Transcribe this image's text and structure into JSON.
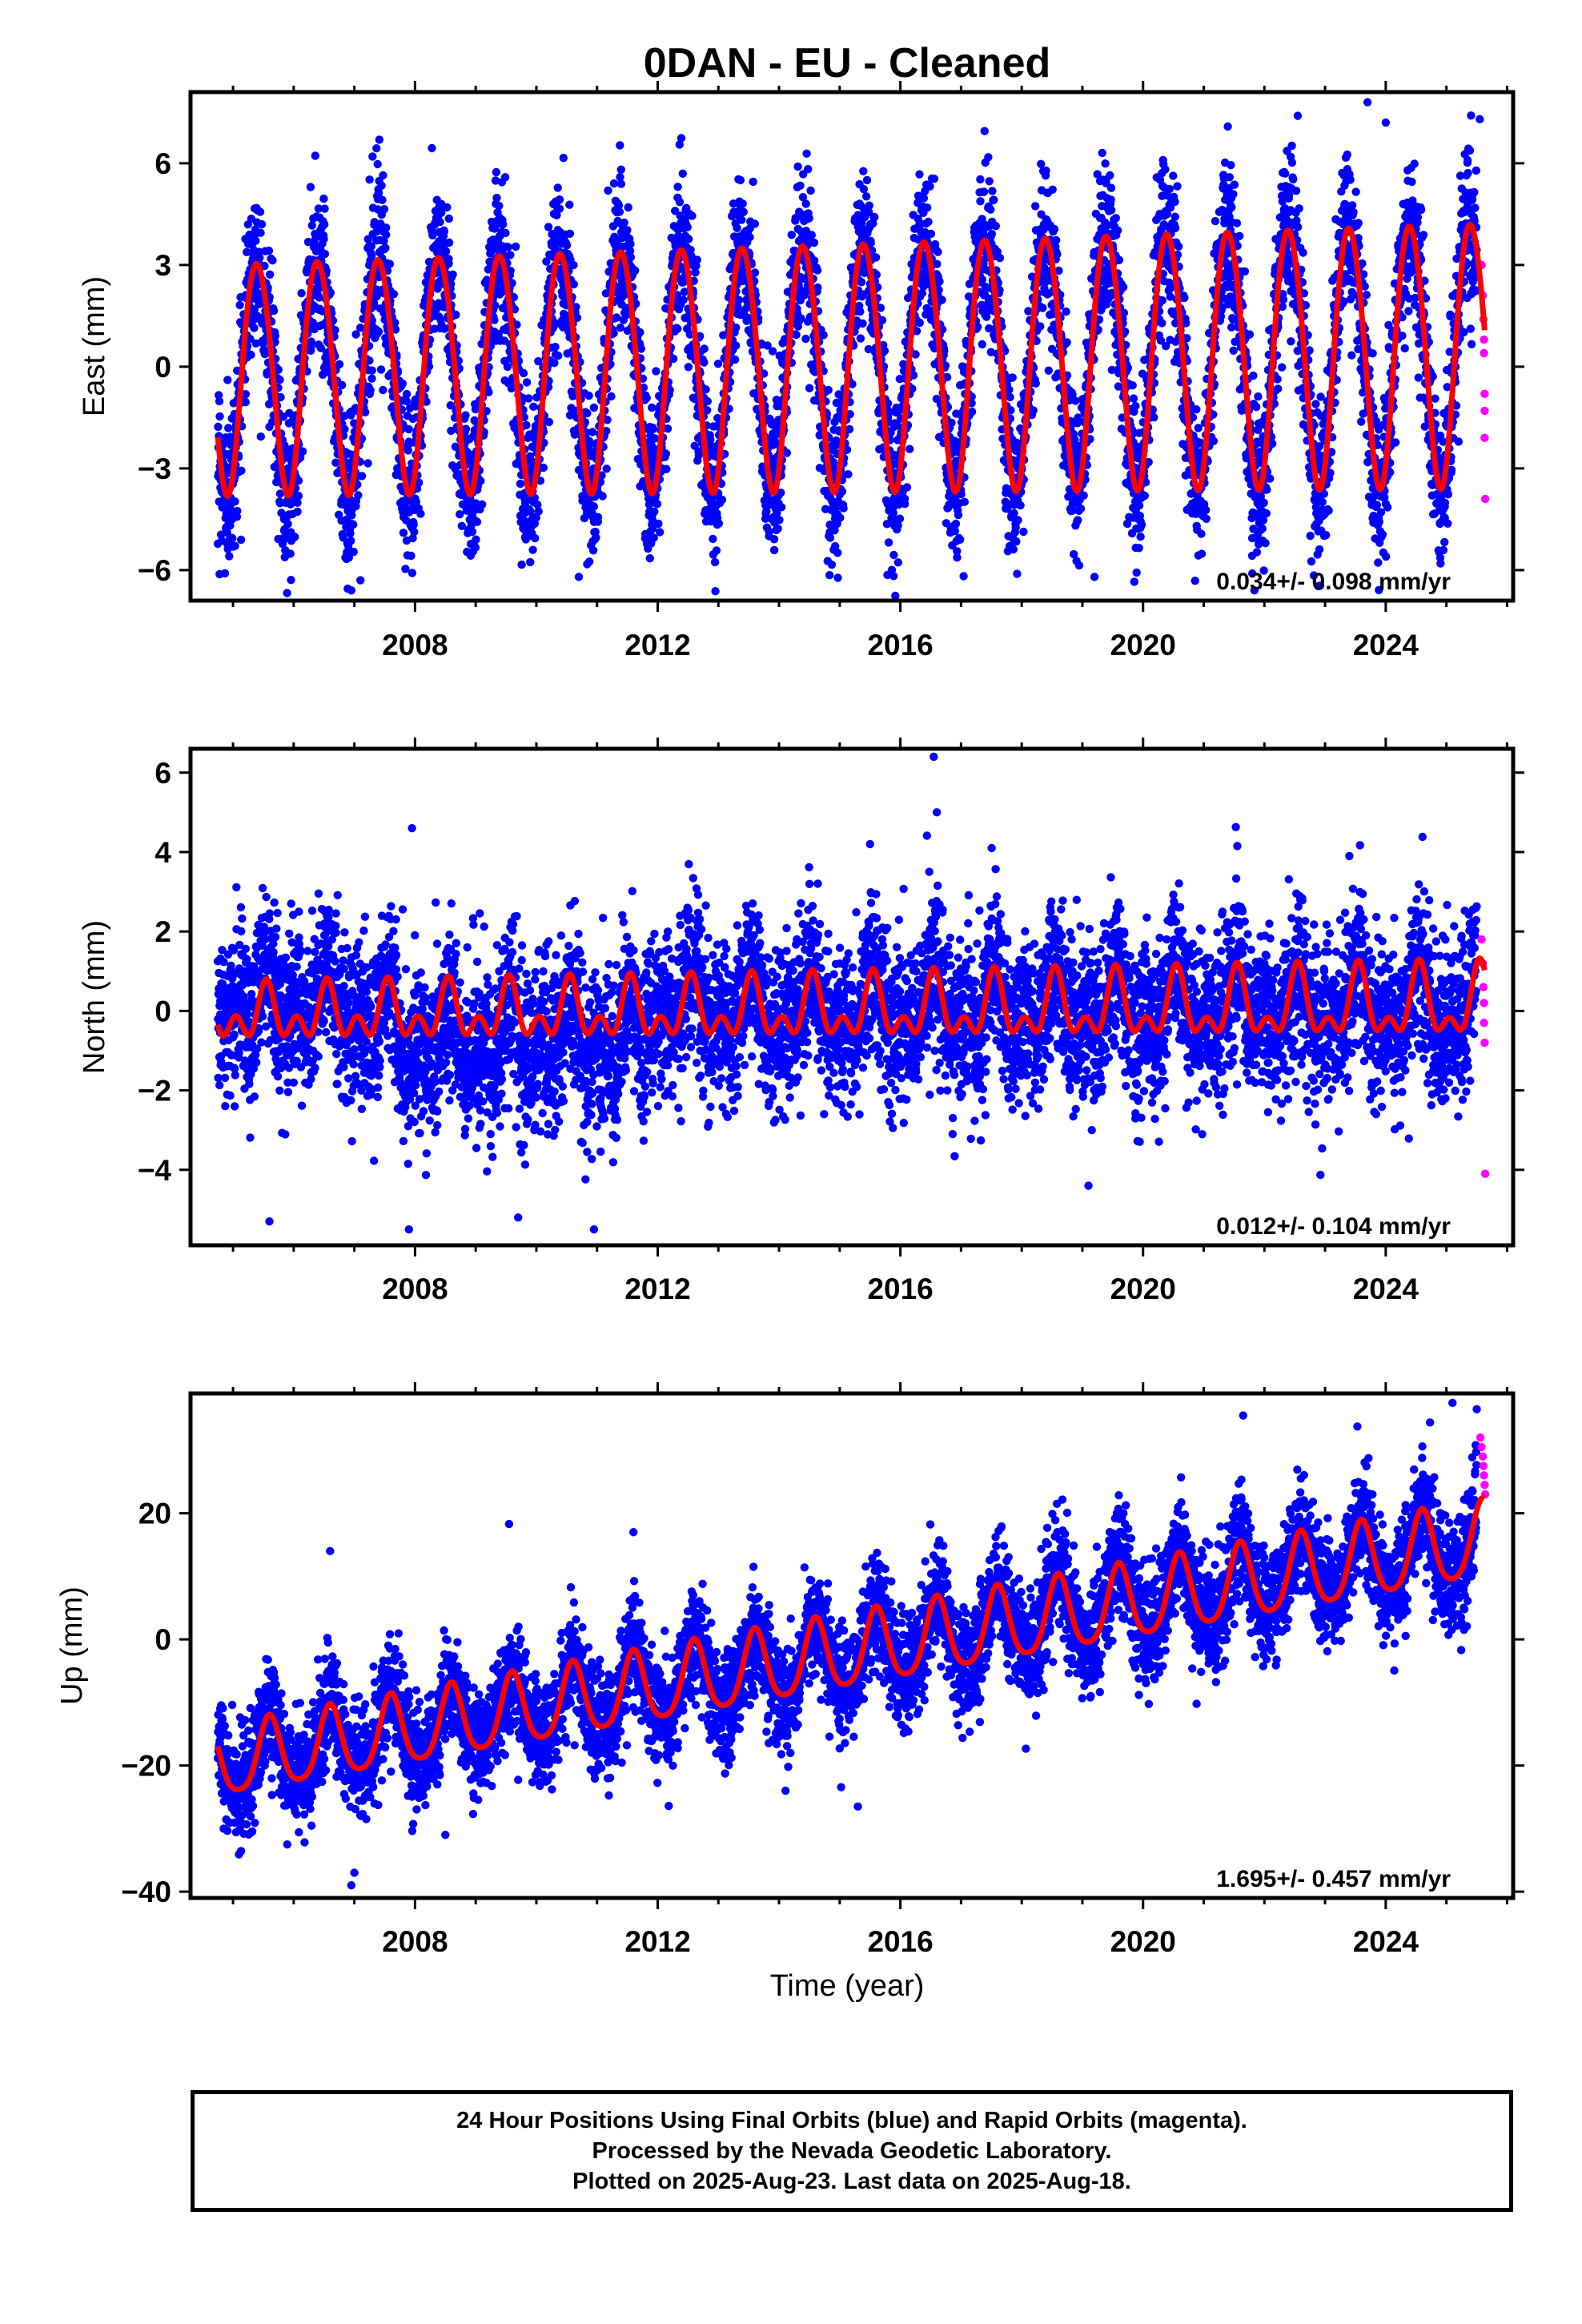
{
  "title": "0DAN  - EU - Cleaned",
  "colors": {
    "final": "#0000ff",
    "rapid": "#ff00ff",
    "model": "#ff0000",
    "frame": "#000000"
  },
  "xaxis": {
    "label": "Time (year)",
    "range": [
      2004.3,
      2026.1
    ],
    "ticks": [
      2008,
      2012,
      2016,
      2020,
      2024
    ],
    "tick_labels": [
      "2008",
      "2012",
      "2016",
      "2020",
      "2024"
    ],
    "minor_step": 1
  },
  "chart_data": [
    {
      "type": "scatter",
      "component": "east",
      "ylabel": "East (mm)",
      "ylim": [
        -6.9,
        8.1
      ],
      "ticks": [
        -6,
        -3,
        0,
        3,
        6
      ],
      "tick_labels": [
        "−6",
        "−3",
        "0",
        "3",
        "6"
      ],
      "rate": "0.034+/- 0.098 mm/yr",
      "data_start": 2004.75,
      "data_end": 2025.63,
      "rapid_start": 2025.5,
      "model": {
        "offset": 0.1,
        "trend": 0.034,
        "annual_amp": 3.4,
        "annual_amp_end": 3.9,
        "annual_peak": 0.4,
        "semiannual_amp": 0.2,
        "semiannual_peak": 0.2
      },
      "scatter_sd": 1.15,
      "point_count": 7000,
      "outliers": [
        [
          2006.95,
          -6.6
        ],
        [
          2023.7,
          7.8
        ],
        [
          2024.0,
          7.2
        ],
        [
          2025.55,
          7.3
        ],
        [
          2022.55,
          7.4
        ],
        [
          2007.3,
          6.2
        ],
        [
          2007.1,
          -6.3
        ],
        [
          2010.7,
          -6.2
        ],
        [
          2021.8,
          -6.1
        ],
        [
          2019.2,
          -6.2
        ]
      ],
      "rapid_points": [
        [
          2025.58,
          3.0
        ],
        [
          2025.6,
          2.1
        ],
        [
          2025.61,
          1.4
        ],
        [
          2025.62,
          0.8
        ],
        [
          2025.62,
          0.4
        ],
        [
          2025.63,
          -0.8
        ],
        [
          2025.63,
          -1.3
        ],
        [
          2025.63,
          -2.1
        ],
        [
          2025.64,
          -3.9
        ]
      ]
    },
    {
      "type": "scatter",
      "component": "north",
      "ylabel": "North (mm)",
      "ylim": [
        -5.9,
        6.6
      ],
      "ticks": [
        -4,
        -2,
        0,
        2,
        4,
        6
      ],
      "tick_labels": [
        "−4",
        "−2",
        "0",
        "2",
        "4",
        "6"
      ],
      "rate": "0.012+/- 0.104 mm/yr",
      "data_start": 2004.75,
      "data_end": 2025.63,
      "rapid_start": 2025.5,
      "model": {
        "offset": 0.0,
        "trend": 0.012,
        "annual_amp": 0.45,
        "annual_amp_end": 0.75,
        "annual_peak": 0.55,
        "semiannual_amp": 0.45,
        "semiannual_peak": 0.05
      },
      "scatter_sd": 1.0,
      "point_count": 7000,
      "shifts": [
        [
          2004.75,
          2007.0,
          0.3
        ],
        [
          2007.7,
          2011.8,
          -0.7
        ],
        [
          2011.8,
          2013.0,
          0.3
        ]
      ],
      "outliers": [
        [
          2016.55,
          6.4
        ],
        [
          2016.6,
          5.0
        ],
        [
          2007.95,
          4.6
        ],
        [
          2005.6,
          -5.3
        ],
        [
          2007.9,
          -5.5
        ],
        [
          2010.95,
          -5.5
        ],
        [
          2009.7,
          -5.2
        ],
        [
          2019.1,
          -4.4
        ],
        [
          2015.5,
          4.2
        ],
        [
          2023.4,
          3.9
        ]
      ],
      "rapid_points": [
        [
          2025.58,
          1.8
        ],
        [
          2025.6,
          1.2
        ],
        [
          2025.61,
          0.6
        ],
        [
          2025.62,
          0.2
        ],
        [
          2025.62,
          -0.3
        ],
        [
          2025.63,
          -0.8
        ],
        [
          2025.64,
          -4.1
        ]
      ]
    },
    {
      "type": "scatter",
      "component": "up",
      "ylabel": "Up (mm)",
      "ylim": [
        -41,
        39
      ],
      "ticks": [
        -40,
        -20,
        0,
        20
      ],
      "tick_labels": [
        "−40",
        "−20",
        "0",
        "20"
      ],
      "rate": "1.695+/- 0.457 mm/yr",
      "data_start": 2004.75,
      "data_end": 2025.63,
      "rapid_start": 2025.5,
      "model": {
        "offset": -2.5,
        "trend": 1.695,
        "quad": 0.03,
        "annual_amp": 5.5,
        "annual_amp_end": 6.0,
        "annual_peak": 0.6,
        "semiannual_amp": 1.0,
        "semiannual_peak": 0.1
      },
      "scatter_sd": 4.3,
      "point_count": 7000,
      "outliers": [
        [
          2006.95,
          -39.0
        ],
        [
          2007.0,
          -37.0
        ],
        [
          2025.1,
          37.5
        ],
        [
          2025.5,
          36.5
        ],
        [
          2021.65,
          35.5
        ],
        [
          2009.55,
          18.3
        ],
        [
          2006.6,
          14.0
        ],
        [
          2011.6,
          17.0
        ],
        [
          2008.5,
          -31.0
        ],
        [
          2015.3,
          -26.5
        ]
      ],
      "rapid_points": [
        [
          2025.56,
          32.0
        ],
        [
          2025.58,
          30.5
        ],
        [
          2025.6,
          29.0
        ],
        [
          2025.61,
          27.5
        ],
        [
          2025.62,
          26.0
        ],
        [
          2025.63,
          24.5
        ],
        [
          2025.64,
          23.0
        ]
      ]
    }
  ],
  "footer": {
    "line1": "24 Hour Positions Using Final Orbits (blue) and Rapid Orbits (magenta).",
    "line2": "Processed by the Nevada Geodetic Laboratory.",
    "line3": "Plotted on 2025-Aug-23. Last data on 2025-Aug-18."
  }
}
